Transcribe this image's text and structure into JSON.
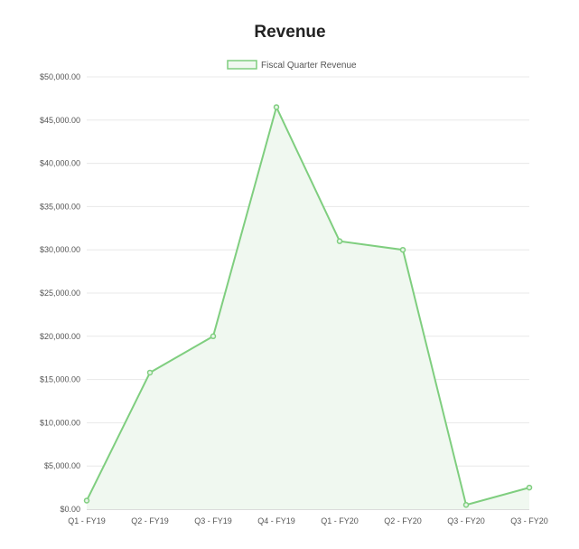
{
  "chart_data": {
    "type": "area",
    "title": "Revenue",
    "categories": [
      "Q1 - FY19",
      "Q2 - FY19",
      "Q3 - FY19",
      "Q4 - FY19",
      "Q1 - FY20",
      "Q2 - FY20",
      "Q3 - FY20",
      "Q3 - FY20"
    ],
    "series": [
      {
        "name": "Fiscal Quarter Revenue",
        "values": [
          1000,
          15800,
          20000,
          46500,
          31000,
          30000,
          500,
          2500
        ],
        "color": "#7fce7f",
        "fill": "#f0f8f0"
      }
    ],
    "y_ticks": [
      "$0.00",
      "$5,000.00",
      "$10,000.00",
      "$15,000.00",
      "$20,000.00",
      "$25,000.00",
      "$30,000.00",
      "$35,000.00",
      "$40,000.00",
      "$45,000.00",
      "$50,000.00"
    ],
    "ylim": [
      0,
      50000
    ],
    "grid": true,
    "legend_position": "top-center",
    "xlabel": "",
    "ylabel": ""
  }
}
